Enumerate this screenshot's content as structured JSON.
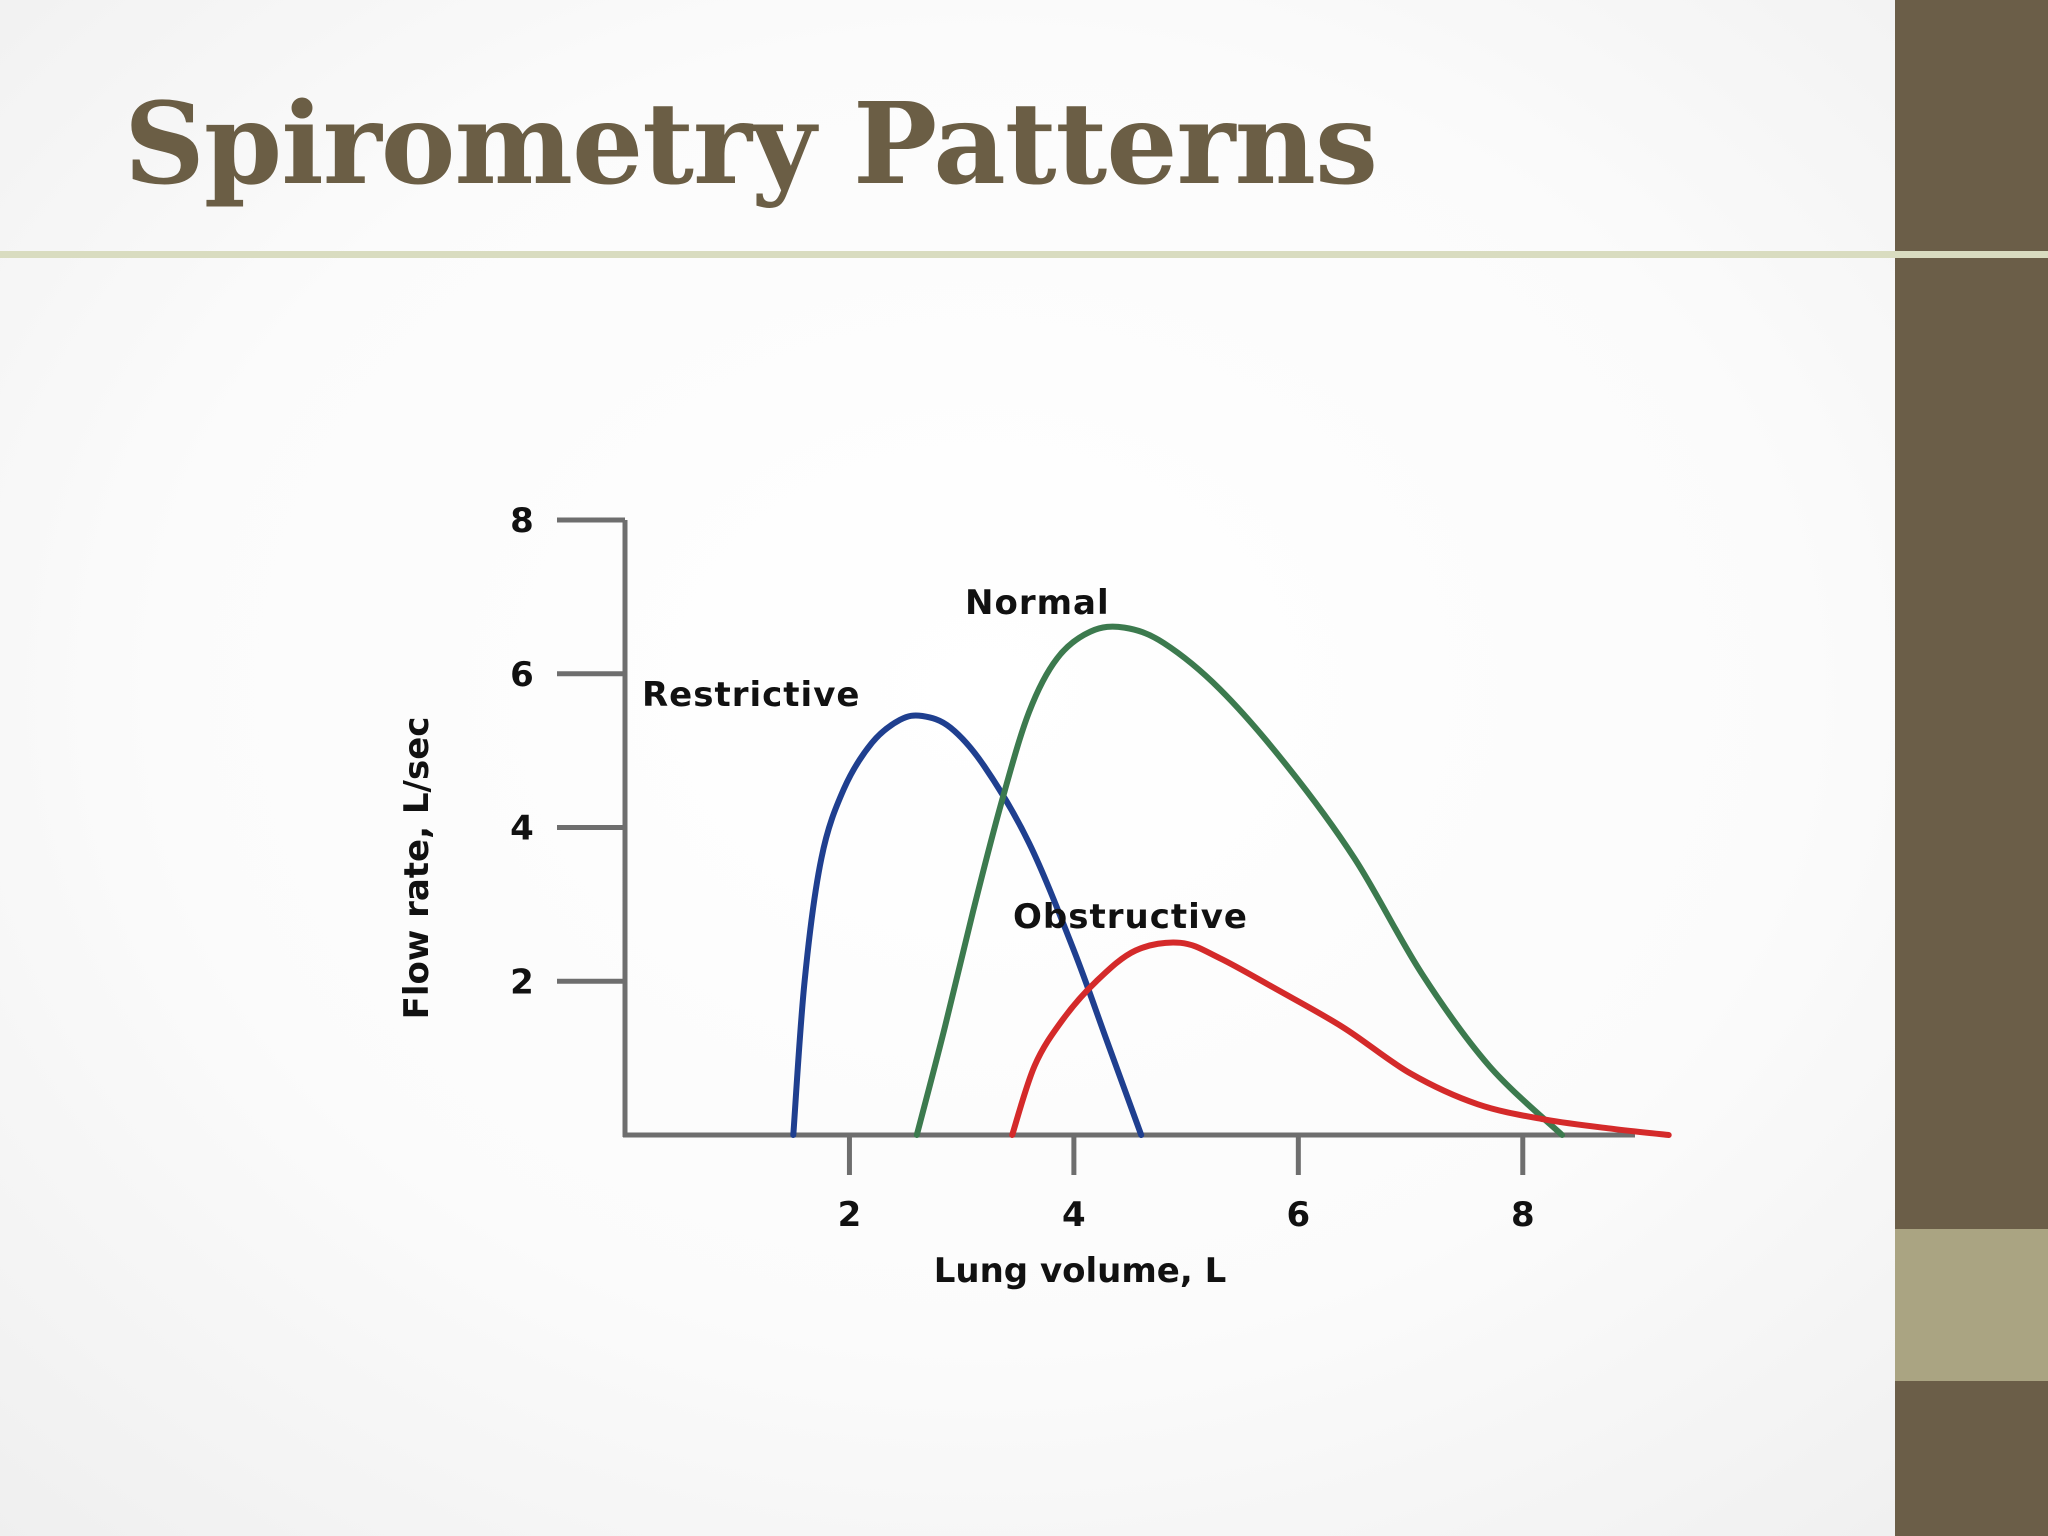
{
  "slide": {
    "title": "Spirometry Patterns",
    "colors": {
      "title": "#6b5e45",
      "rule": "#d9dcc0",
      "side_bar": "#6b5e48",
      "side_bar_accent": "#aaa482"
    }
  },
  "chart_data": {
    "type": "line",
    "title": "",
    "xlabel": "Lung volume, L",
    "ylabel": "Flow rate, L/sec",
    "xlim": [
      0,
      9
    ],
    "ylim": [
      0,
      8
    ],
    "xticks": [
      2,
      4,
      6,
      8
    ],
    "yticks": [
      2,
      4,
      6,
      8
    ],
    "grid": false,
    "legend": "none",
    "series": [
      {
        "name": "Restrictive",
        "color": "#1f3f8f",
        "x": [
          1.5,
          1.6,
          1.75,
          1.95,
          2.2,
          2.45,
          2.65,
          2.9,
          3.2,
          3.6,
          4.0,
          4.3,
          4.6
        ],
        "y": [
          0,
          2.0,
          3.6,
          4.5,
          5.1,
          5.4,
          5.45,
          5.3,
          4.8,
          3.8,
          2.4,
          1.2,
          0
        ]
      },
      {
        "name": "Normal",
        "color": "#3c7a4e",
        "x": [
          2.6,
          2.85,
          3.1,
          3.35,
          3.6,
          3.85,
          4.15,
          4.45,
          4.8,
          5.3,
          5.9,
          6.5,
          7.1,
          7.7,
          8.35
        ],
        "y": [
          0,
          1.4,
          2.9,
          4.3,
          5.5,
          6.2,
          6.55,
          6.6,
          6.4,
          5.8,
          4.8,
          3.6,
          2.1,
          0.9,
          0
        ]
      },
      {
        "name": "Obstructive",
        "color": "#d42a2a",
        "x": [
          3.45,
          3.65,
          3.9,
          4.2,
          4.55,
          4.95,
          5.3,
          5.8,
          6.4,
          7.0,
          7.6,
          8.2,
          8.8,
          9.3
        ],
        "y": [
          0,
          0.9,
          1.5,
          2.0,
          2.4,
          2.5,
          2.3,
          1.9,
          1.4,
          0.8,
          0.4,
          0.2,
          0.08,
          0
        ]
      }
    ]
  }
}
